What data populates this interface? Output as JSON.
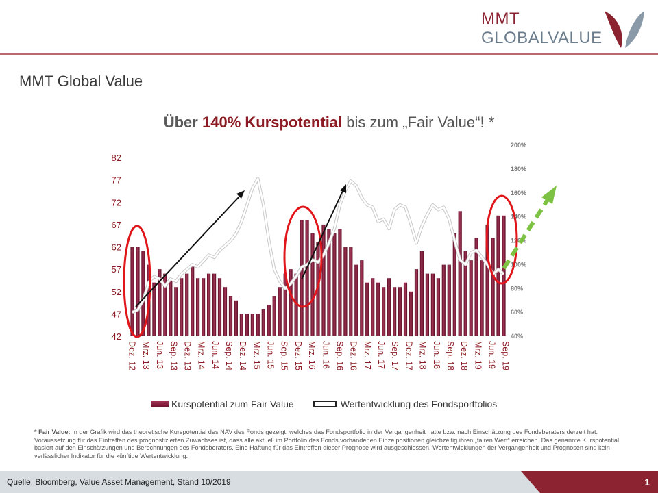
{
  "logo": {
    "line1": "MMT",
    "line2": "GLOBALVALUE"
  },
  "slide_title": "MMT Global Value",
  "headline": {
    "part1": "Über",
    "part2": "140% Kurspotential",
    "part3": " bis zum „Fair Value“! *"
  },
  "legend": {
    "bars": "Kurspotential zum Fair Value",
    "line": "Wertentwicklung des Fondsportfolios"
  },
  "footnote": {
    "label": "* Fair Value:",
    "text": " In der Grafik wird das theoretische Kurspotential des NAV des Fonds gezeigt, welches das Fondsportfolio in der Vergangenheit hatte bzw. nach Einschätzung des Fondsberaters derzeit hat. Voraussetzung für das Eintreffen des prognostizierten Zuwachses ist, dass alle aktuell im Portfolio des Fonds vorhandenen Einzelpositionen gleichzeitig ihren „fairen Wert“ erreichen. Das genannte Kurspotential basiert auf den Einschätzungen und Berechnungen des Fondsberaters. Eine Haftung für das Eintreffen dieser Prognose wird ausgeschlossen. Wertentwicklungen der Vergangenheit und Prognosen sind kein verlässlicher Indikator für die künftige Wertentwicklung."
  },
  "footer": {
    "source": "Quelle: Bloomberg, Value Asset Management, Stand 10/2019",
    "page": "1"
  },
  "colors": {
    "brand_red": "#8b2331",
    "brand_grey": "#6b7c8c",
    "bar": "#7a1632",
    "ellipse": "#e0161b",
    "arrow_green": "#7dc242"
  },
  "chart_data": {
    "type": "bar",
    "series": [
      {
        "name": "Kurspotential zum Fair Value",
        "axis": "left",
        "values": [
          62,
          62,
          61,
          58,
          54,
          57,
          56,
          55,
          53,
          55,
          56,
          58,
          55,
          55,
          56,
          56,
          55,
          53,
          51,
          50,
          47,
          47,
          47,
          47,
          48,
          49,
          51,
          53,
          56,
          57,
          56,
          68,
          68,
          65,
          63,
          67,
          66,
          65,
          66,
          62,
          62,
          58,
          59,
          54,
          55,
          54,
          53,
          55,
          53,
          53,
          54,
          52,
          57,
          61,
          56,
          56,
          55,
          58,
          58,
          65,
          70,
          61,
          59,
          64,
          59,
          67,
          64,
          69,
          69
        ]
      },
      {
        "name": "Wertentwicklung des Fondsportfolios",
        "axis": "right",
        "values": [
          60,
          62,
          70,
          85,
          90,
          88,
          82,
          88,
          86,
          92,
          96,
          100,
          98,
          103,
          108,
          106,
          112,
          116,
          120,
          126,
          136,
          150,
          164,
          172,
          150,
          120,
          96,
          86,
          80,
          84,
          90,
          98,
          100,
          104,
          102,
          108,
          118,
          130,
          150,
          162,
          170,
          166,
          156,
          150,
          148,
          136,
          138,
          130,
          146,
          150,
          148,
          134,
          118,
          132,
          142,
          150,
          146,
          148,
          138,
          120,
          104,
          100,
          110,
          112,
          106,
          100,
          92,
          96,
          92
        ]
      }
    ],
    "x_tick_labels": [
      "Dez. 12",
      "Mrz. 13",
      "Jun. 13",
      "Sep. 13",
      "Dez. 13",
      "Mrz. 14",
      "Jun. 14",
      "Sep. 14",
      "Dez. 14",
      "Mrz. 15",
      "Jun. 15",
      "Sep. 15",
      "Dez. 15",
      "Mrz. 16",
      "Jun. 16",
      "Sep. 16",
      "Dez. 16",
      "Mrz. 17",
      "Jun. 17",
      "Sep. 17",
      "Dez. 17",
      "Mrz. 18",
      "Jun. 18",
      "Sep. 18",
      "Dez. 18",
      "Mrz. 19",
      "Jun. 19",
      "Sep. 19"
    ],
    "y_left_ticks": [
      "42",
      "47",
      "52",
      "57",
      "62",
      "67",
      "72",
      "77",
      "82"
    ],
    "y_left_range": [
      42,
      82
    ],
    "y_right_ticks": [
      "40%",
      "60%",
      "80%",
      "100%",
      "120%",
      "140%",
      "160%",
      "180%",
      "200%"
    ],
    "y_right_range": [
      40,
      200
    ],
    "grid": false,
    "legend_position": "bottom"
  }
}
